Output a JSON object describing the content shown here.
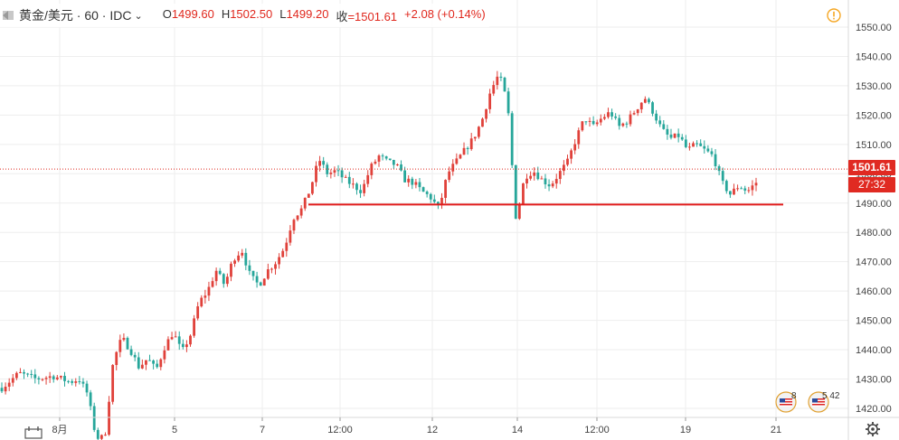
{
  "header": {
    "symbol": "黄金/美元 · 60 · IDC",
    "open_label": "O",
    "open": "1499.60",
    "high_label": "H",
    "high": "1502.50",
    "low_label": "L",
    "low": "1499.20",
    "close_label": "收",
    "close": "=1501.61",
    "change": "+2.08 (+0.14%)"
  },
  "price_badge": {
    "price": "1501.61",
    "countdown": "27:32"
  },
  "events": [
    {
      "count": "8"
    },
    {
      "count": "5 42"
    }
  ],
  "colors": {
    "up": "#e0413a",
    "down": "#26a69a",
    "support": "#e01b1b",
    "accent": "#f5a623"
  },
  "icons": [
    "symbol-icon",
    "chevron-down-icon",
    "warning-icon",
    "us-flag-icon",
    "calendar-range-icon",
    "gear-icon"
  ],
  "chart_data": {
    "type": "candlestick",
    "y_axis": {
      "ticks": [
        "1420.00",
        "1430.00",
        "1440.00",
        "1450.00",
        "1460.00",
        "1470.00",
        "1480.00",
        "1490.00",
        "1500.00",
        "1510.00",
        "1520.00",
        "1530.00",
        "1540.00",
        "1550.00"
      ],
      "ylim": [
        1418,
        1555
      ]
    },
    "x_axis": {
      "ticks": [
        "8月",
        "5",
        "7",
        "12:00",
        "12",
        "14",
        "12:00",
        "19",
        "21"
      ]
    },
    "grid": true,
    "support_level": 1489.5,
    "last_price": 1501.61,
    "price_path": [
      [
        0,
        1427
      ],
      [
        2,
        1432
      ],
      [
        4,
        1430
      ],
      [
        6,
        1431
      ],
      [
        8,
        1429
      ],
      [
        9,
        1430
      ],
      [
        10,
        1425
      ],
      [
        11,
        1410
      ],
      [
        12,
        1410
      ],
      [
        13,
        1436
      ],
      [
        14,
        1444
      ],
      [
        15,
        1440
      ],
      [
        16,
        1434
      ],
      [
        17,
        1437
      ],
      [
        18,
        1433
      ],
      [
        19,
        1441
      ],
      [
        20,
        1446
      ],
      [
        21,
        1439
      ],
      [
        22,
        1445
      ],
      [
        23,
        1456
      ],
      [
        24,
        1460
      ],
      [
        25,
        1467
      ],
      [
        26,
        1462
      ],
      [
        27,
        1471
      ],
      [
        28,
        1474
      ],
      [
        29,
        1465
      ],
      [
        30,
        1462
      ],
      [
        31,
        1467
      ],
      [
        32,
        1470
      ],
      [
        33,
        1475
      ],
      [
        34,
        1485
      ],
      [
        35,
        1488
      ],
      [
        36,
        1495
      ],
      [
        37,
        1505
      ],
      [
        38,
        1500
      ],
      [
        39,
        1501
      ],
      [
        40,
        1498
      ],
      [
        41,
        1496
      ],
      [
        42,
        1494
      ],
      [
        43,
        1502
      ],
      [
        44,
        1506
      ],
      [
        45,
        1504
      ],
      [
        46,
        1503
      ],
      [
        47,
        1498
      ],
      [
        48,
        1497
      ],
      [
        49,
        1494
      ],
      [
        50,
        1492
      ],
      [
        51,
        1488
      ],
      [
        52,
        1500
      ],
      [
        53,
        1504
      ],
      [
        54,
        1508
      ],
      [
        55,
        1512
      ],
      [
        56,
        1518
      ],
      [
        57,
        1528
      ],
      [
        58,
        1534
      ],
      [
        59,
        1524
      ],
      [
        60,
        1484
      ],
      [
        61,
        1499
      ],
      [
        62,
        1501
      ],
      [
        63,
        1498
      ],
      [
        64,
        1496
      ],
      [
        65,
        1500
      ],
      [
        66,
        1504
      ],
      [
        67,
        1512
      ],
      [
        68,
        1519
      ],
      [
        69,
        1516
      ],
      [
        70,
        1519
      ],
      [
        71,
        1521
      ],
      [
        72,
        1516
      ],
      [
        73,
        1518
      ],
      [
        74,
        1522
      ],
      [
        75,
        1526
      ],
      [
        76,
        1521
      ],
      [
        77,
        1515
      ],
      [
        78,
        1512
      ],
      [
        79,
        1513
      ],
      [
        80,
        1508
      ],
      [
        81,
        1510
      ],
      [
        82,
        1508
      ],
      [
        83,
        1506
      ],
      [
        84,
        1497
      ],
      [
        85,
        1493
      ],
      [
        86,
        1496
      ],
      [
        87,
        1494
      ],
      [
        88,
        1497
      ]
    ]
  }
}
